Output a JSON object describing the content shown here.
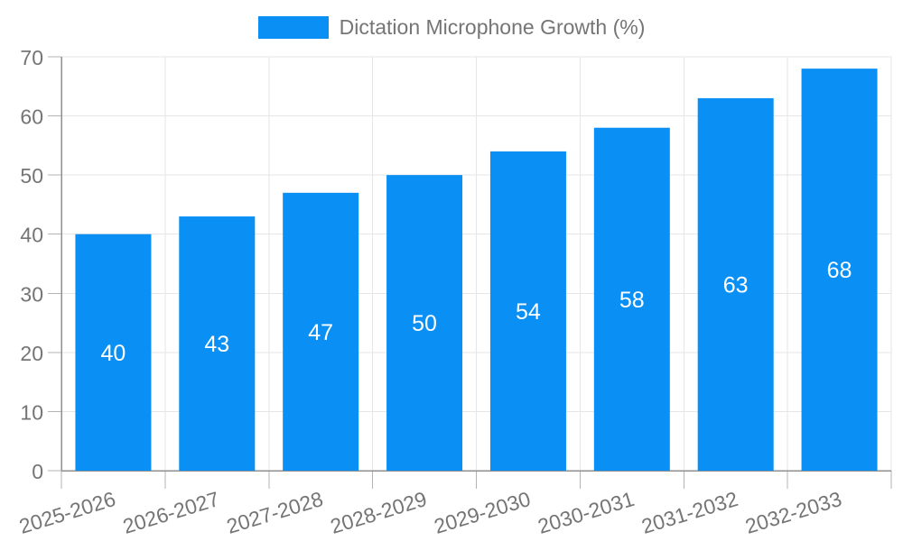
{
  "legend": {
    "label": "Dictation Microphone Growth (%)"
  },
  "chart_data": {
    "type": "bar",
    "title": "Dictation Microphone Growth (%)",
    "series_name": "Dictation Microphone Growth (%)",
    "categories": [
      "2025-2026",
      "2026-2027",
      "2027-2028",
      "2028-2029",
      "2029-2030",
      "2030-2031",
      "2031-2032",
      "2032-2033"
    ],
    "values": [
      40,
      43,
      47,
      50,
      54,
      58,
      63,
      68
    ],
    "xlabel": "",
    "ylabel": "",
    "ylim": [
      0,
      70
    ],
    "y_ticks": [
      0,
      10,
      20,
      30,
      40,
      50,
      60,
      70
    ],
    "grid": true,
    "legend_position": "top",
    "value_labels_inside_bars": true,
    "x_label_rotation_deg": -17,
    "colors": {
      "bar": "#0a90f5",
      "value_label": "#ffffff",
      "axis_text": "#757575",
      "grid_line": "#e6e6e6",
      "axis_line": "#8f8f8f",
      "tick_mark": "#b3b3b3",
      "background": "#ffffff"
    }
  }
}
